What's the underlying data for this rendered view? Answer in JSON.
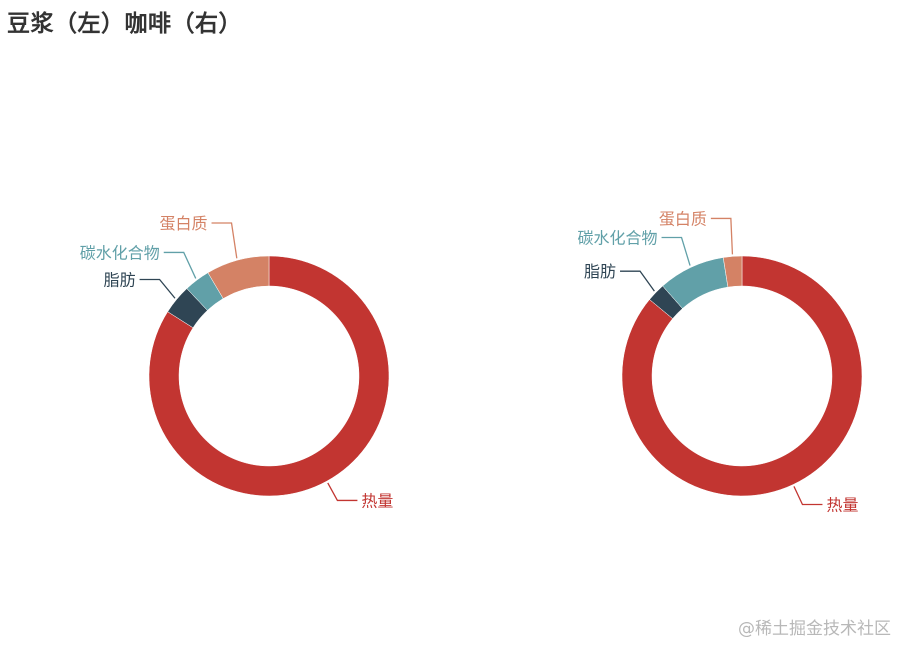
{
  "title": "豆浆（左）咖啡（右）",
  "watermark": "@稀土掘金技术社区",
  "chart_data": [
    {
      "type": "pie",
      "donut": true,
      "categories": [
        "热量",
        "脂肪",
        "碳水化合物",
        "蛋白质"
      ],
      "values": [
        84,
        4,
        3.5,
        8.5
      ],
      "colors": [
        "#c23531",
        "#2f4554",
        "#61a0a8",
        "#d48265"
      ]
    },
    {
      "type": "pie",
      "donut": true,
      "categories": [
        "热量",
        "脂肪",
        "碳水化合物",
        "蛋白质"
      ],
      "values": [
        86,
        2.5,
        9,
        2.5
      ],
      "colors": [
        "#c23531",
        "#2f4554",
        "#61a0a8",
        "#d48265"
      ]
    }
  ]
}
